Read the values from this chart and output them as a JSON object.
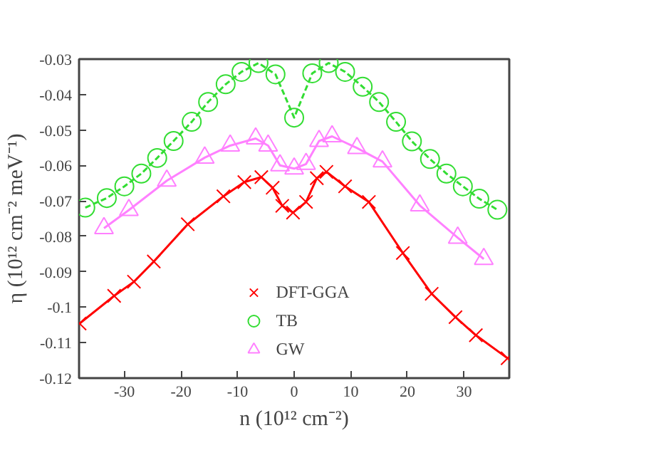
{
  "chart_data": {
    "type": "line",
    "xlabel": "n (10¹² cm⁻²)",
    "ylabel": "η (10¹² cm⁻² meV⁻¹)",
    "xlim": [
      -38,
      38
    ],
    "ylim": [
      -0.12,
      -0.03
    ],
    "xticks": [
      -30,
      -20,
      -10,
      0,
      10,
      20,
      30
    ],
    "yticks": [
      -0.12,
      -0.11,
      -0.1,
      -0.09,
      -0.08,
      -0.07,
      -0.06,
      -0.05,
      -0.04,
      -0.03
    ],
    "grid": false,
    "legend": "bottom",
    "line_style": "solid",
    "series": [
      {
        "name": "DFT-GGA",
        "color": "#ff0000",
        "marker": "cross",
        "x": [
          -37.9,
          -31.8,
          -28.3,
          -24.8,
          -18.8,
          -12.5,
          -8.8,
          -5.8,
          -3.8,
          -2.1,
          -0.2,
          2.1,
          4.0,
          5.7,
          9.0,
          13.2,
          19.2,
          24.3,
          28.5,
          32.1,
          37.7
        ],
        "values": [
          -0.1046,
          -0.0968,
          -0.0928,
          -0.0871,
          -0.0766,
          -0.0687,
          -0.0647,
          -0.0633,
          -0.0663,
          -0.0714,
          -0.0733,
          -0.0703,
          -0.0636,
          -0.0618,
          -0.0659,
          -0.0703,
          -0.0847,
          -0.0962,
          -0.1028,
          -0.1079,
          -0.1144
        ]
      },
      {
        "name": "TB",
        "color": "#33dd33",
        "marker": "circle",
        "line_style": "dashed",
        "x": [
          -36.9,
          -33.1,
          -30.0,
          -27.0,
          -24.2,
          -21.3,
          -18.1,
          -15.2,
          -12.1,
          -9.3,
          -6.3,
          -3.3,
          0.0,
          3.2,
          6.1,
          9.0,
          12.1,
          15.0,
          18.0,
          20.8,
          24.0,
          26.9,
          29.8,
          32.7,
          35.9
        ],
        "values": [
          -0.0719,
          -0.0692,
          -0.0659,
          -0.0623,
          -0.0579,
          -0.0531,
          -0.0477,
          -0.0421,
          -0.0371,
          -0.0336,
          -0.0311,
          -0.0343,
          -0.0465,
          -0.034,
          -0.0311,
          -0.0336,
          -0.0378,
          -0.0421,
          -0.0477,
          -0.0532,
          -0.0582,
          -0.0623,
          -0.0659,
          -0.0694,
          -0.0725
        ]
      },
      {
        "name": "GW",
        "color": "#ff80ff",
        "marker": "triangle",
        "x": [
          -33.6,
          -29.2,
          -22.5,
          -15.8,
          -11.3,
          -6.8,
          -4.6,
          -2.5,
          0.0,
          2.1,
          4.4,
          6.7,
          11.1,
          15.6,
          22.2,
          28.9,
          33.5
        ],
        "values": [
          -0.0777,
          -0.0726,
          -0.0643,
          -0.0578,
          -0.0544,
          -0.0524,
          -0.0544,
          -0.06,
          -0.0609,
          -0.0596,
          -0.0531,
          -0.0518,
          -0.0551,
          -0.0589,
          -0.0713,
          -0.0804,
          -0.0864
        ]
      }
    ]
  }
}
